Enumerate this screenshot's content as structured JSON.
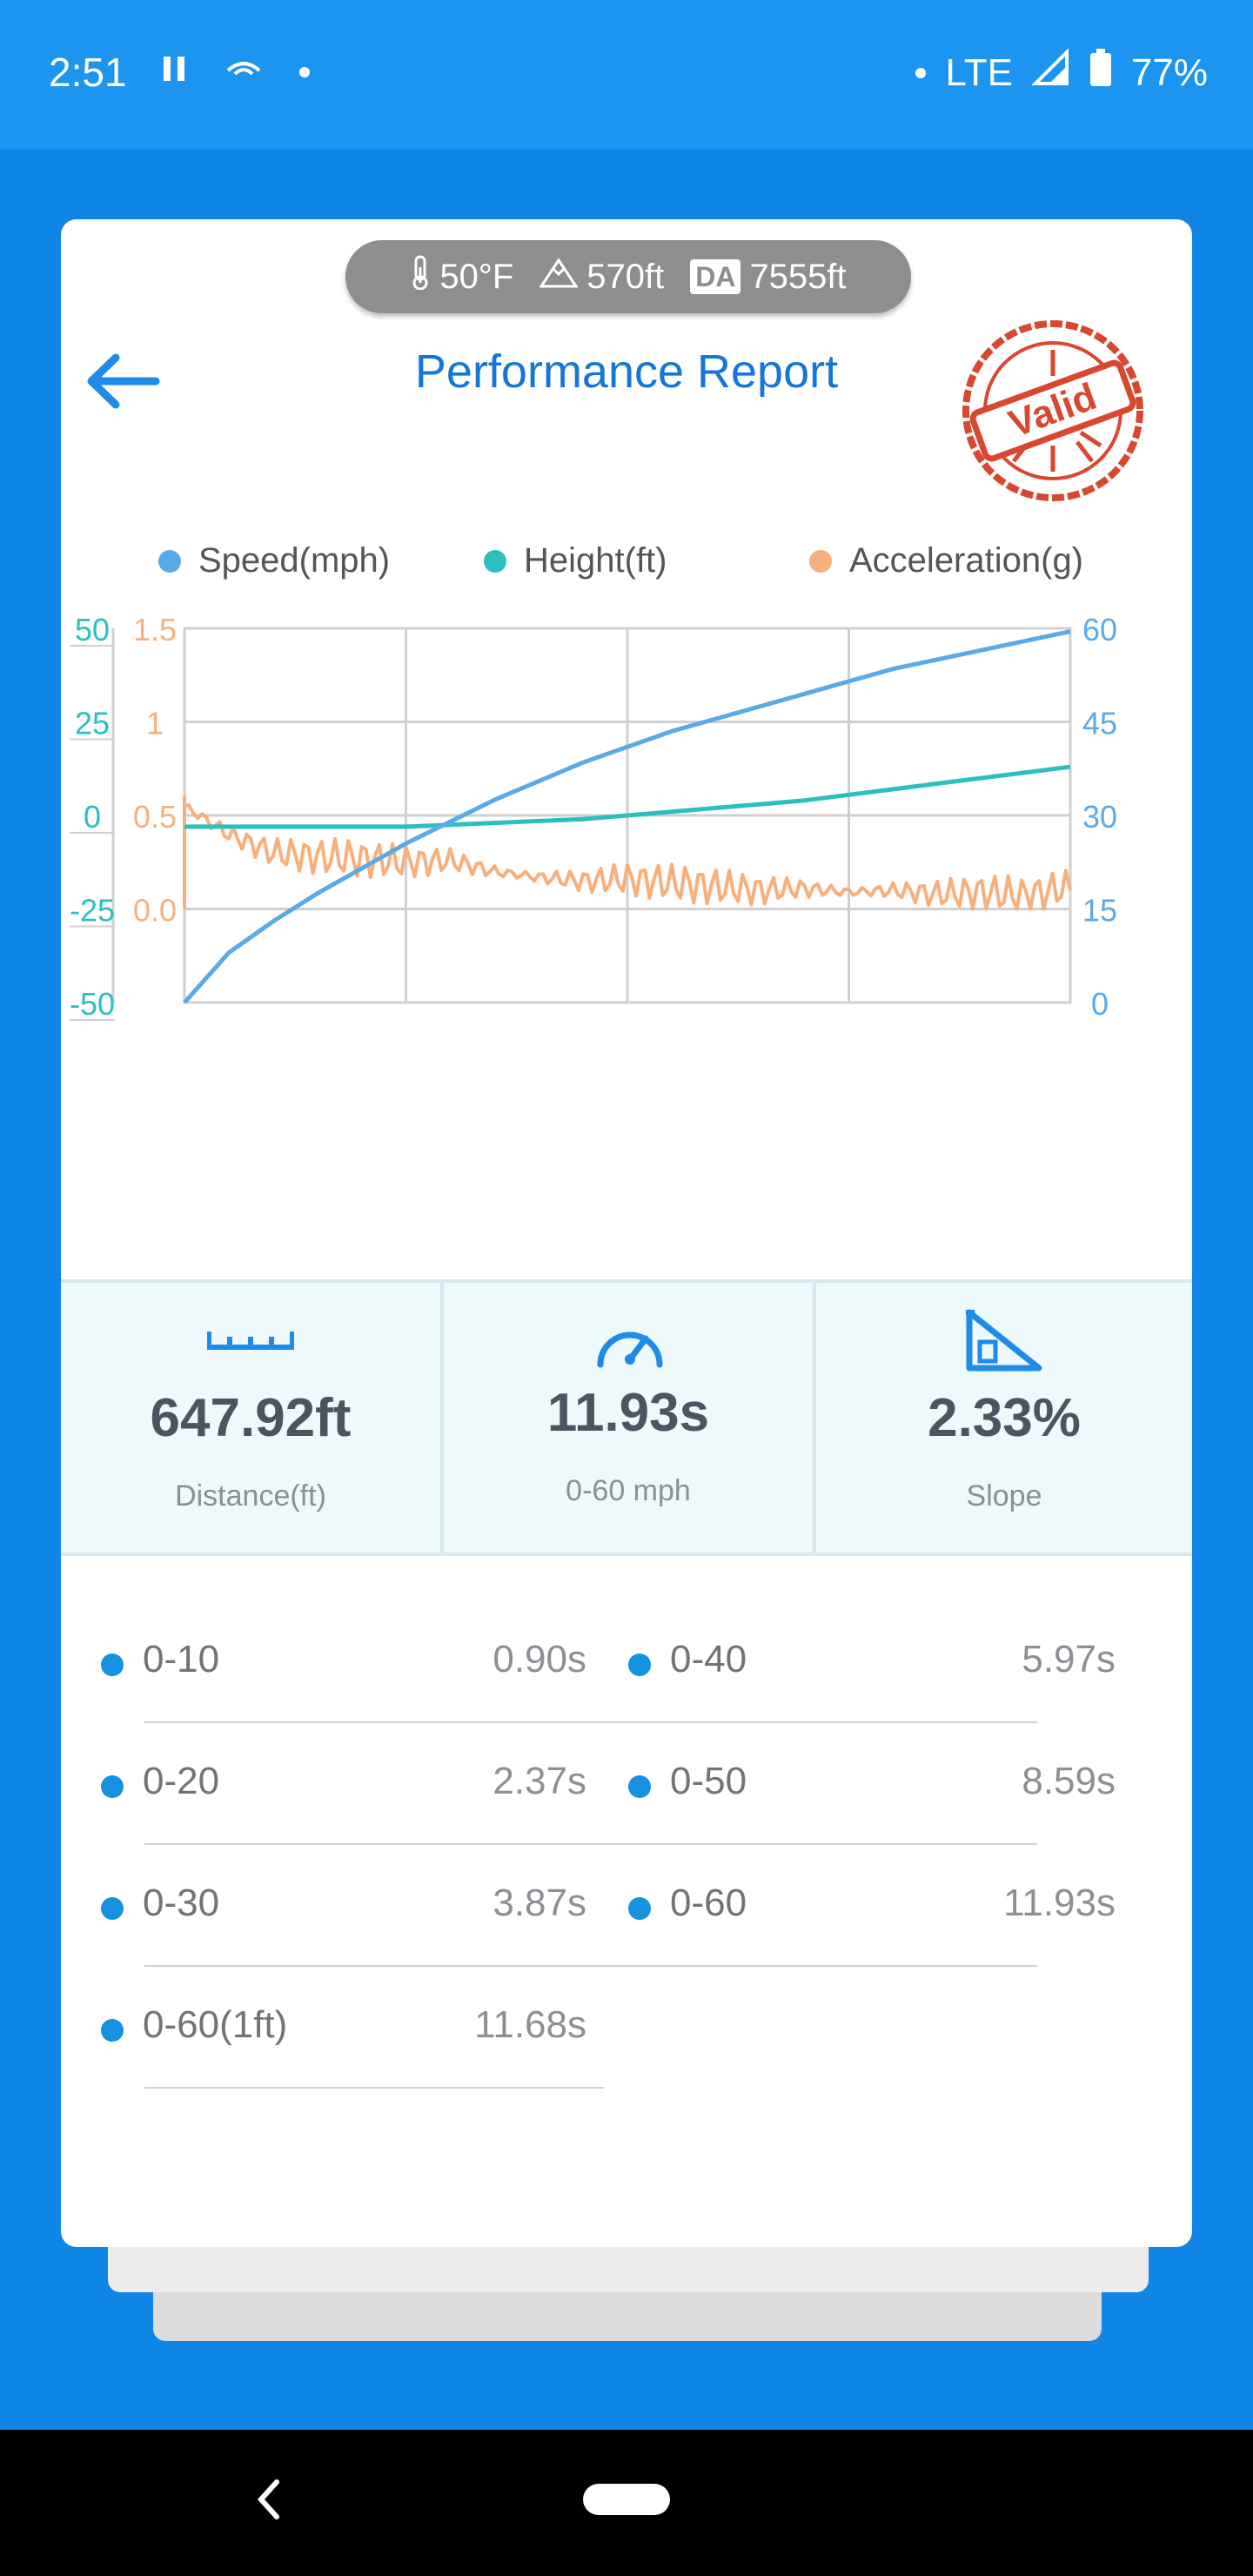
{
  "status": {
    "time": "2:51",
    "network": "LTE",
    "battery": "77%"
  },
  "environment": {
    "temperature": "50°F",
    "altitude": "570ft",
    "da_badge": "DA",
    "density_altitude": "7555ft"
  },
  "header": {
    "title": "Performance Report",
    "stamp": "Valid"
  },
  "legend": [
    {
      "label": "Speed(mph)",
      "color": "#5aaae8"
    },
    {
      "label": "Height(ft)",
      "color": "#2cbfbf"
    },
    {
      "label": "Acceleration(g)",
      "color": "#f7b07c"
    }
  ],
  "chart_data": {
    "type": "line",
    "x": [
      0,
      5,
      10,
      15,
      20,
      25,
      30,
      35,
      40,
      45,
      50,
      55,
      60,
      65,
      70,
      75,
      80,
      85,
      90,
      95,
      100
    ],
    "axes": {
      "height_ticks": [
        "50",
        "25",
        "0",
        "-25",
        "-50"
      ],
      "accel_ticks": [
        "1.5",
        "1",
        "0.5",
        "0.0"
      ],
      "speed_ticks": [
        "60",
        "45",
        "30",
        "15",
        "0"
      ]
    },
    "series": [
      {
        "name": "Speed(mph)",
        "color": "#5aaae8",
        "axis": "right",
        "ylim": [
          0,
          60
        ],
        "values": [
          0,
          8,
          13,
          17.5,
          21.5,
          25.5,
          29,
          32.5,
          35.5,
          38.5,
          41,
          43.5,
          45.5,
          47.5,
          49.5,
          51.5,
          53.5,
          55,
          56.5,
          58,
          59.5
        ]
      },
      {
        "name": "Height(ft)",
        "color": "#2cbfbf",
        "axis": "left",
        "ylim": [
          -50,
          50
        ],
        "values": [
          -3,
          -3,
          -3,
          -3,
          -3,
          -3,
          -2.5,
          -2,
          -1.5,
          -1,
          0,
          1,
          2,
          3,
          4,
          5.5,
          7,
          8.5,
          10,
          11.5,
          13
        ]
      },
      {
        "name": "Acceleration(g)",
        "color": "#f7b07c",
        "axis": "middle",
        "ylim": [
          0,
          1.5
        ],
        "values": [
          0.55,
          0.4,
          0.3,
          0.28,
          0.27,
          0.25,
          0.26,
          0.2,
          0.17,
          0.15,
          0.16,
          0.14,
          0.12,
          0.1,
          0.11,
          0.09,
          0.1,
          0.08,
          0.09,
          0.07,
          0.12
        ]
      }
    ]
  },
  "stats": [
    {
      "value": "647.92ft",
      "label": "Distance(ft)",
      "icon": "ruler-icon"
    },
    {
      "value": "11.93s",
      "label": "0-60 mph",
      "icon": "speedometer-icon"
    },
    {
      "value": "2.33%",
      "label": "Slope",
      "icon": "slope-icon"
    }
  ],
  "splits": [
    {
      "name": "0-10",
      "time": "0.90s"
    },
    {
      "name": "0-40",
      "time": "5.97s"
    },
    {
      "name": "0-20",
      "time": "2.37s"
    },
    {
      "name": "0-50",
      "time": "8.59s"
    },
    {
      "name": "0-30",
      "time": "3.87s"
    },
    {
      "name": "0-60",
      "time": "11.93s"
    },
    {
      "name": "0-60(1ft)",
      "time": "11.68s"
    }
  ]
}
